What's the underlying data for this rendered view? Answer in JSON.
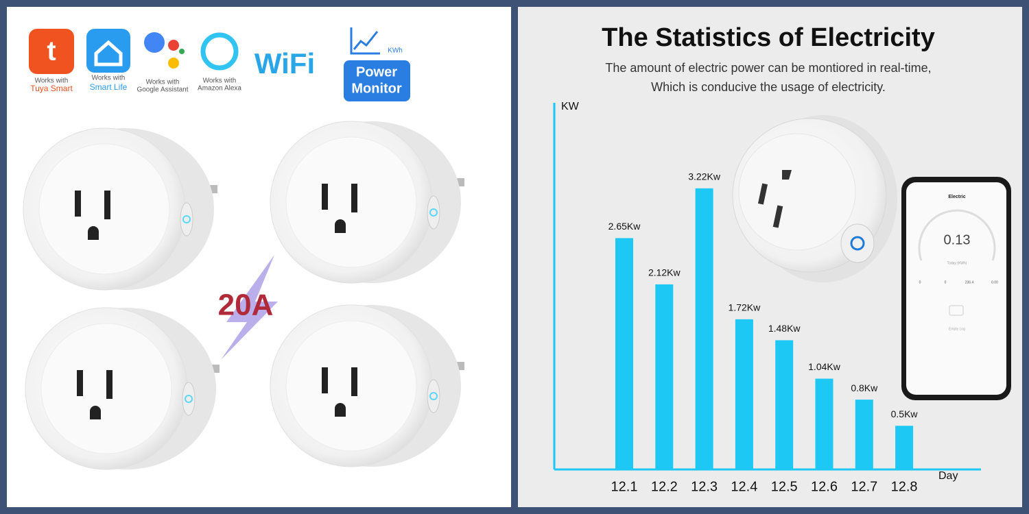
{
  "left_panel": {
    "badges": [
      {
        "top": "Works with",
        "bottom": "Tuya Smart"
      },
      {
        "top": "Works with",
        "bottom": "Smart Life"
      },
      {
        "top": "Works with",
        "bottom": "Google Assistant"
      },
      {
        "top": "Works with",
        "bottom": "Amazon Alexa"
      }
    ],
    "wifi": "WiFi",
    "monitor_unit": "KWh",
    "monitor_line1": "Power",
    "monitor_line2": "Monitor",
    "rating": "20A"
  },
  "phone": {
    "app_title": "Electric",
    "reading": "0.13",
    "reading_caption": "Today (KWh)",
    "stats": [
      "0",
      "0",
      "236.4",
      "0.00"
    ],
    "empty": "Empty Log"
  },
  "chart_data": {
    "type": "bar",
    "title": "The Statistics of Electricity",
    "subtitle_lines": [
      "The amount of electric power can be montiored in real-time,",
      "Which is conducive the usage of electricity."
    ],
    "y_label": "KW",
    "x_label": "Day",
    "categories": [
      "12.1",
      "12.2",
      "12.3",
      "12.4",
      "12.5",
      "12.6",
      "12.7",
      "12.8"
    ],
    "values": [
      2.65,
      2.12,
      3.22,
      1.72,
      1.48,
      1.04,
      0.8,
      0.5
    ],
    "value_labels": [
      "2.65Kw",
      "2.12Kw",
      "3.22Kw",
      "1.72Kw",
      "1.48Kw",
      "1.04Kw",
      "0.8Kw",
      "0.5Kw"
    ],
    "color": "#1ec8f5",
    "ylim": [
      0,
      4.2
    ]
  }
}
